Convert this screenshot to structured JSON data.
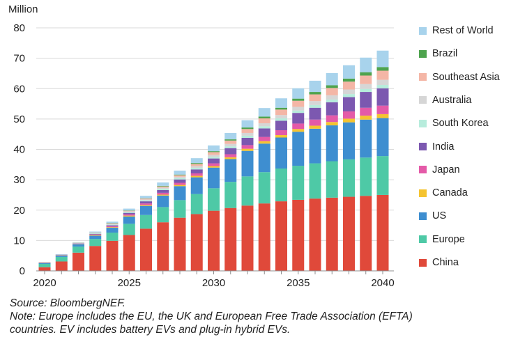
{
  "chart_data": {
    "type": "stacked-bar",
    "title": "",
    "ylabel": "Million",
    "xlabel": "",
    "ylim": [
      0,
      80
    ],
    "yticks": [
      0,
      10,
      20,
      30,
      40,
      50,
      60,
      70,
      80
    ],
    "xticks": [
      2020,
      2025,
      2030,
      2035,
      2040
    ],
    "grid": true,
    "legend_position": "right",
    "categories": [
      2020,
      2021,
      2022,
      2023,
      2024,
      2025,
      2026,
      2027,
      2028,
      2029,
      2030,
      2031,
      2032,
      2033,
      2034,
      2035,
      2036,
      2037,
      2038,
      2039,
      2040
    ],
    "series": [
      {
        "name": "China",
        "color": "#e0493a",
        "values": [
          1.2,
          3.1,
          6.0,
          8.2,
          9.9,
          11.8,
          13.9,
          16.0,
          17.5,
          18.7,
          19.8,
          20.7,
          21.5,
          22.2,
          22.9,
          23.4,
          23.8,
          24.1,
          24.4,
          24.7,
          25.0
        ]
      },
      {
        "name": "Europe",
        "color": "#4ec9a6",
        "values": [
          1.1,
          1.5,
          2.0,
          2.3,
          2.7,
          3.7,
          4.5,
          5.0,
          5.8,
          6.6,
          7.4,
          8.6,
          9.6,
          10.3,
          10.8,
          11.2,
          11.6,
          12.0,
          12.3,
          12.6,
          12.8
        ]
      },
      {
        "name": "US",
        "color": "#3e8ed0",
        "values": [
          0.3,
          0.5,
          0.8,
          1.1,
          1.6,
          2.4,
          3.0,
          3.8,
          4.6,
          5.5,
          6.8,
          7.5,
          8.4,
          9.4,
          10.2,
          11.2,
          11.4,
          11.8,
          12.2,
          12.5,
          12.5
        ]
      },
      {
        "name": "Canada",
        "color": "#f5c431",
        "values": [
          0.1,
          0.1,
          0.1,
          0.2,
          0.2,
          0.3,
          0.3,
          0.3,
          0.4,
          0.5,
          0.5,
          0.6,
          0.7,
          0.8,
          0.8,
          0.9,
          1.0,
          1.1,
          1.2,
          1.3,
          1.3
        ]
      },
      {
        "name": "Japan",
        "color": "#e45aa8",
        "values": [
          0.1,
          0.1,
          0.1,
          0.2,
          0.3,
          0.4,
          0.5,
          0.6,
          0.7,
          0.8,
          0.9,
          1.0,
          1.2,
          1.4,
          1.6,
          1.8,
          2.0,
          2.2,
          2.4,
          2.6,
          2.8
        ]
      },
      {
        "name": "India",
        "color": "#7c58b0",
        "values": [
          0.05,
          0.05,
          0.1,
          0.2,
          0.3,
          0.5,
          0.7,
          0.9,
          1.1,
          1.3,
          1.6,
          2.0,
          2.4,
          2.8,
          3.1,
          3.5,
          3.9,
          4.3,
          4.7,
          5.2,
          5.7
        ]
      },
      {
        "name": "South Korea",
        "color": "#b7ecdc",
        "values": [
          0.05,
          0.05,
          0.1,
          0.2,
          0.2,
          0.3,
          0.3,
          0.4,
          0.4,
          0.5,
          0.5,
          0.6,
          0.7,
          0.7,
          0.8,
          0.8,
          0.9,
          0.9,
          1.0,
          1.0,
          1.1
        ]
      },
      {
        "name": "Australia",
        "color": "#d6d6d6",
        "values": [
          0.0,
          0.0,
          0.05,
          0.1,
          0.2,
          0.2,
          0.3,
          0.4,
          0.5,
          0.6,
          0.7,
          0.8,
          0.9,
          1.0,
          1.1,
          1.2,
          1.3,
          1.4,
          1.5,
          1.6,
          1.7
        ]
      },
      {
        "name": "Southeast Asia",
        "color": "#f4b6a6",
        "values": [
          0.0,
          0.0,
          0.05,
          0.1,
          0.2,
          0.2,
          0.3,
          0.4,
          0.5,
          0.7,
          0.9,
          1.1,
          1.3,
          1.6,
          1.8,
          2.0,
          2.2,
          2.4,
          2.6,
          2.8,
          3.0
        ]
      },
      {
        "name": "Brazil",
        "color": "#4ea34e",
        "values": [
          0.0,
          0.0,
          0.05,
          0.05,
          0.1,
          0.1,
          0.1,
          0.2,
          0.2,
          0.3,
          0.3,
          0.4,
          0.5,
          0.6,
          0.6,
          0.7,
          0.8,
          0.9,
          1.0,
          1.1,
          1.2
        ]
      },
      {
        "name": "Rest of World",
        "color": "#a8d3ec",
        "values": [
          0.0,
          0.1,
          0.1,
          0.3,
          0.5,
          0.6,
          0.8,
          1.1,
          1.3,
          1.6,
          1.9,
          2.1,
          2.4,
          2.8,
          3.1,
          3.4,
          3.7,
          4.0,
          4.4,
          4.8,
          5.4
        ]
      }
    ]
  },
  "notes": {
    "source": "Source: BloombergNEF.",
    "note_line1": "Note: Europe includes the EU, the UK and European Free Trade Association (EFTA)",
    "note_line2": "countries. EV includes battery EVs and plug-in hybrid EVs."
  }
}
